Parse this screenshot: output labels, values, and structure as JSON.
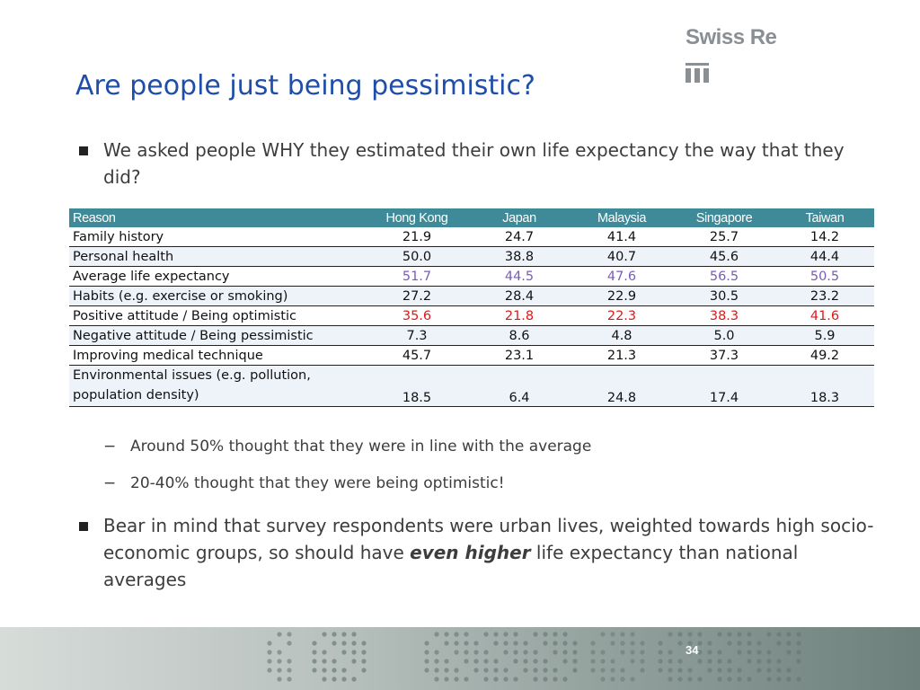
{
  "logo": {
    "text": "Swiss Re"
  },
  "title": "Are people just being pessimistic?",
  "bullets": {
    "b1": "We asked people WHY they estimated their own life expectancy the way that they did?",
    "b2_part1": "Bear in mind that survey respondents were urban lives, weighted towards high socio-economic groups, so should have ",
    "b2_emph": "even higher",
    "b2_part2": " life expectancy than national averages"
  },
  "subbullets": {
    "dash": "−",
    "s1": "Around 50% thought that they were in line with the average",
    "s2": "20-40% thought that they were being optimistic!"
  },
  "table": {
    "headers": [
      "Reason",
      "Hong Kong",
      "Japan",
      "Malaysia",
      "Singapore",
      "Taiwan"
    ],
    "rows": [
      {
        "reason": "Family history",
        "values": [
          "21.9",
          "24.7",
          "41.4",
          "25.7",
          "14.2"
        ]
      },
      {
        "reason": "Personal health",
        "values": [
          "50.0",
          "38.8",
          "40.7",
          "45.6",
          "44.4"
        ]
      },
      {
        "reason": "Average life expectancy",
        "values": [
          "51.7",
          "44.5",
          "47.6",
          "56.5",
          "50.5"
        ]
      },
      {
        "reason": "Habits (e.g. exercise or smoking)",
        "values": [
          "27.2",
          "28.4",
          "22.9",
          "30.5",
          "23.2"
        ]
      },
      {
        "reason": "Positive attitude / Being optimistic",
        "values": [
          "35.6",
          "21.8",
          "22.3",
          "38.3",
          "41.6"
        ]
      },
      {
        "reason": "Negative attitude / Being pessimistic",
        "values": [
          "7.3",
          "8.6",
          "4.8",
          "5.0",
          "5.9"
        ]
      },
      {
        "reason": "Improving medical technique",
        "values": [
          "45.7",
          "23.1",
          "21.3",
          "37.3",
          "49.2"
        ]
      },
      {
        "reason_line1": "Environmental issues (e.g. pollution,",
        "reason_line2": "population density)",
        "values": [
          "18.5",
          "6.4",
          "24.8",
          "17.4",
          "18.3"
        ]
      }
    ],
    "highlight_colors": {
      "average": "#7a5cb8",
      "optimistic": "#e01818"
    }
  },
  "footer": {
    "page_number": "34"
  }
}
